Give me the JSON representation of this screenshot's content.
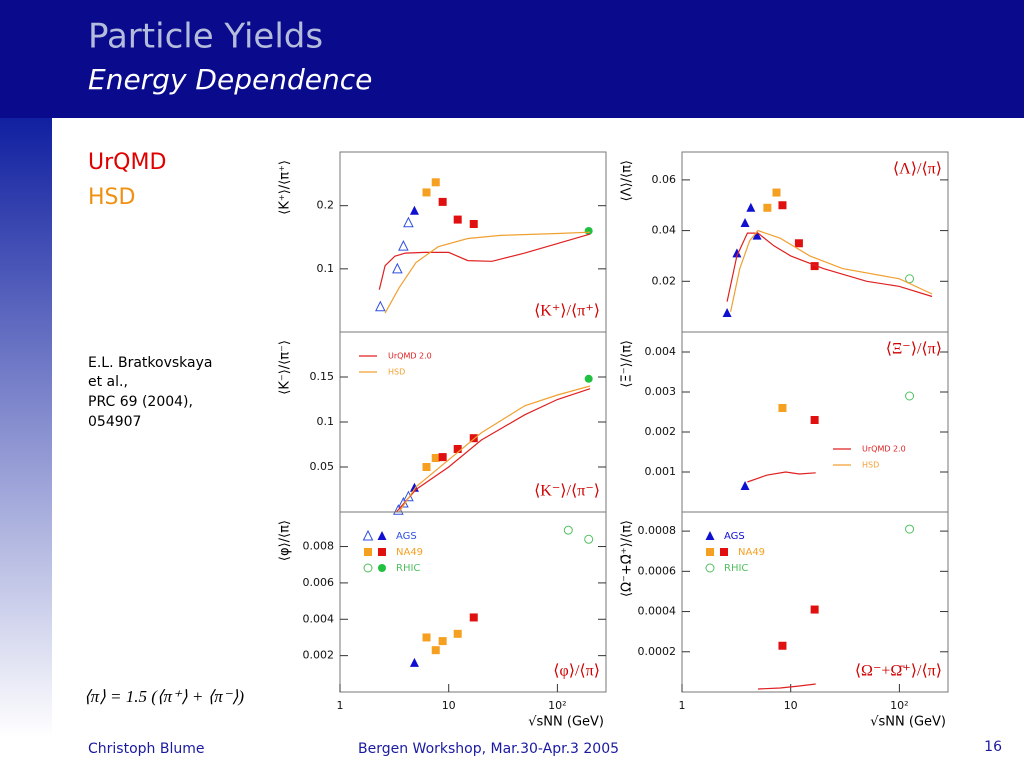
{
  "slide": {
    "title": "Particle Yields",
    "subtitle": "Energy Dependence",
    "model_1": "UrQMD",
    "model_2": "HSD",
    "reference": [
      "E.L. Bratkovskaya",
      "et al.,",
      "PRC 69 (2004),",
      "054907"
    ],
    "formula": "⟨π⟩ = 1.5 (⟨π⁺⟩ + ⟨π⁻⟩)",
    "footer_left": "Christoph Blume",
    "footer_center": "Bergen Workshop, Mar.30-Apr.3 2005",
    "page": "16"
  },
  "chart_data": [
    {
      "type": "scatter",
      "ylabel": "⟨K⁺⟩/⟨π⁺⟩",
      "label": "⟨K⁺⟩/⟨π⁺⟩",
      "label_corner": "lower right",
      "log_x": true,
      "xlim": [
        1,
        280
      ],
      "ylim": [
        0,
        0.285
      ],
      "yticks": [
        0.1,
        0.2
      ],
      "series": [
        {
          "style": "marker",
          "marker": "triangle",
          "open": true,
          "color": "#3050e0",
          "x": [
            2.35,
            3.37,
            3.83,
            4.26
          ],
          "values": [
            0.04,
            0.1,
            0.136,
            0.173
          ]
        },
        {
          "style": "marker",
          "marker": "triangle",
          "open": false,
          "color": "#1010d0",
          "x": [
            4.84
          ],
          "values": [
            0.192
          ]
        },
        {
          "style": "marker",
          "marker": "square",
          "open": false,
          "color": "#f5a020",
          "x": [
            6.25,
            7.6
          ],
          "values": [
            0.221,
            0.237
          ]
        },
        {
          "style": "marker",
          "marker": "square",
          "open": false,
          "color": "#e01010",
          "x": [
            8.8,
            12.1,
            17.0
          ],
          "values": [
            0.206,
            0.178,
            0.171
          ]
        },
        {
          "style": "marker",
          "marker": "circle",
          "open": false,
          "color": "#20c040",
          "x": [
            194
          ],
          "values": [
            0.16
          ]
        },
        {
          "style": "line",
          "color": "#e02020",
          "x": [
            2.3,
            2.6,
            3.2,
            4,
            6,
            10,
            15,
            25,
            50,
            100,
            200
          ],
          "values": [
            0.067,
            0.105,
            0.12,
            0.125,
            0.126,
            0.126,
            0.113,
            0.112,
            0.125,
            0.14,
            0.155
          ]
        },
        {
          "style": "line",
          "color": "#f0a030",
          "x": [
            2.6,
            3.5,
            5,
            8,
            15,
            30,
            100,
            200
          ],
          "values": [
            0.03,
            0.07,
            0.11,
            0.135,
            0.148,
            0.153,
            0.156,
            0.158
          ]
        }
      ]
    },
    {
      "type": "scatter",
      "ylabel": "⟨Λ⟩/⟨π⟩",
      "label": "⟨Λ⟩/⟨π⟩",
      "label_corner": "upper right",
      "log_x": true,
      "xlim": [
        1,
        280
      ],
      "ylim": [
        0,
        0.071
      ],
      "yticks": [
        0.02,
        0.04,
        0.06
      ],
      "series": [
        {
          "style": "marker",
          "marker": "triangle",
          "open": false,
          "color": "#1010d0",
          "x": [
            2.6,
            3.2,
            3.8,
            4.3,
            4.9
          ],
          "values": [
            0.0075,
            0.031,
            0.043,
            0.049,
            0.038
          ]
        },
        {
          "style": "marker",
          "marker": "square",
          "open": false,
          "color": "#f5a020",
          "x": [
            6.1,
            7.4
          ],
          "values": [
            0.049,
            0.055
          ]
        },
        {
          "style": "marker",
          "marker": "square",
          "open": false,
          "color": "#e01010",
          "x": [
            8.4,
            11.9,
            16.6
          ],
          "values": [
            0.05,
            0.035,
            0.026
          ]
        },
        {
          "style": "marker",
          "marker": "circle",
          "open": true,
          "color": "#50c060",
          "x": [
            124
          ],
          "values": [
            0.021
          ]
        },
        {
          "style": "line",
          "color": "#e02020",
          "x": [
            2.6,
            3.2,
            4,
            5,
            7,
            10,
            20,
            50,
            100,
            200
          ],
          "values": [
            0.012,
            0.03,
            0.039,
            0.039,
            0.034,
            0.03,
            0.025,
            0.02,
            0.018,
            0.014
          ]
        },
        {
          "style": "line",
          "color": "#f0a030",
          "x": [
            2.8,
            3.4,
            4.2,
            5,
            8,
            15,
            30,
            100,
            200
          ],
          "values": [
            0.008,
            0.025,
            0.036,
            0.04,
            0.037,
            0.03,
            0.025,
            0.021,
            0.015
          ]
        }
      ]
    },
    {
      "type": "scatter",
      "ylabel": "⟨K⁻⟩/⟨π⁻⟩",
      "label": "⟨K⁻⟩/⟨π⁻⟩",
      "label_corner": "lower right",
      "log_x": true,
      "xlim": [
        1,
        280
      ],
      "ylim": [
        0,
        0.2
      ],
      "yticks": [
        0.05,
        0.1,
        0.15
      ],
      "legend_loc": "upper left",
      "legend": [
        {
          "name": "UrQMD 2.0",
          "markers": [
            {
              "shape": "line",
              "color": "#e02020"
            }
          ]
        },
        {
          "name": "HSD",
          "markers": [
            {
              "shape": "line",
              "color": "#f0a030"
            }
          ]
        }
      ],
      "series": [
        {
          "style": "marker",
          "marker": "triangle",
          "open": true,
          "color": "#3050e0",
          "x": [
            3.44,
            3.83,
            4.26
          ],
          "values": [
            0.002,
            0.01,
            0.017
          ]
        },
        {
          "style": "marker",
          "marker": "triangle",
          "open": false,
          "color": "#1010d0",
          "x": [
            4.84
          ],
          "values": [
            0.027
          ]
        },
        {
          "style": "marker",
          "marker": "square",
          "open": false,
          "color": "#f5a020",
          "x": [
            6.25,
            7.6
          ],
          "values": [
            0.05,
            0.06
          ]
        },
        {
          "style": "marker",
          "marker": "square",
          "open": false,
          "color": "#e01010",
          "x": [
            8.8,
            12.1,
            17.0
          ],
          "values": [
            0.061,
            0.07,
            0.082
          ]
        },
        {
          "style": "marker",
          "marker": "circle",
          "open": false,
          "color": "#20c040",
          "x": [
            194
          ],
          "values": [
            0.148
          ]
        },
        {
          "style": "line",
          "color": "#e02020",
          "x": [
            3.3,
            5,
            10,
            20,
            50,
            100,
            200
          ],
          "values": [
            0.0,
            0.025,
            0.05,
            0.08,
            0.108,
            0.125,
            0.137
          ]
        },
        {
          "style": "line",
          "color": "#f0a030",
          "x": [
            3.5,
            5,
            10,
            20,
            50,
            100,
            200
          ],
          "values": [
            0.0,
            0.028,
            0.058,
            0.088,
            0.118,
            0.13,
            0.14
          ]
        }
      ]
    },
    {
      "type": "scatter",
      "ylabel": "⟨Ξ⁻⟩/⟨π⟩",
      "label": "⟨Ξ⁻⟩/⟨π⟩",
      "label_corner": "upper right",
      "log_x": true,
      "xlim": [
        1,
        280
      ],
      "ylim": [
        0,
        0.0045
      ],
      "yticks": [
        0.001,
        0.002,
        0.003,
        0.004
      ],
      "legend_loc": "lower right",
      "legend": [
        {
          "name": "UrQMD 2.0",
          "markers": [
            {
              "shape": "line",
              "color": "#e02020"
            }
          ]
        },
        {
          "name": "HSD",
          "markers": [
            {
              "shape": "line",
              "color": "#f0a030"
            }
          ]
        }
      ],
      "series": [
        {
          "style": "marker",
          "marker": "triangle",
          "open": false,
          "color": "#1010d0",
          "x": [
            3.8
          ],
          "values": [
            0.00065
          ]
        },
        {
          "style": "marker",
          "marker": "square",
          "open": false,
          "color": "#f5a020",
          "x": [
            8.4
          ],
          "values": [
            0.0026
          ]
        },
        {
          "style": "marker",
          "marker": "square",
          "open": false,
          "color": "#e01010",
          "x": [
            16.6
          ],
          "values": [
            0.0023
          ]
        },
        {
          "style": "marker",
          "marker": "circle",
          "open": true,
          "color": "#50c060",
          "x": [
            124
          ],
          "values": [
            0.0029
          ]
        },
        {
          "style": "line",
          "color": "#e02020",
          "x": [
            4,
            6,
            9,
            12,
            17
          ],
          "values": [
            0.00075,
            0.00092,
            0.001,
            0.00095,
            0.00098
          ]
        }
      ]
    },
    {
      "type": "scatter",
      "ylabel": "⟨φ⟩/⟨π⟩",
      "label": "⟨φ⟩/⟨π⟩",
      "label_corner": "lower right",
      "log_x": true,
      "xlim": [
        1,
        280
      ],
      "ylim": [
        0,
        0.0099
      ],
      "yticks": [
        0.002,
        0.004,
        0.006,
        0.008
      ],
      "xticks": [
        1,
        10,
        {
          "value": 100,
          "label": "10²"
        }
      ],
      "xlabel": "√sNN (GeV)",
      "legend_loc": "upper left",
      "legend": [
        {
          "name": "AGS",
          "markers": [
            {
              "shape": "triangle",
              "open": true,
              "color": "#3050e0"
            },
            {
              "shape": "triangle",
              "open": false,
              "color": "#1010d0"
            }
          ]
        },
        {
          "name": "NA49",
          "markers": [
            {
              "shape": "square",
              "open": false,
              "color": "#f5a020"
            },
            {
              "shape": "square",
              "open": false,
              "color": "#e01010"
            }
          ]
        },
        {
          "name": "RHIC",
          "markers": [
            {
              "shape": "circle",
              "open": true,
              "color": "#50c060"
            },
            {
              "shape": "circle",
              "open": false,
              "color": "#20c040"
            }
          ]
        }
      ],
      "series": [
        {
          "style": "marker",
          "marker": "triangle",
          "open": false,
          "color": "#1010d0",
          "x": [
            4.84
          ],
          "values": [
            0.0016
          ]
        },
        {
          "style": "marker",
          "marker": "square",
          "open": false,
          "color": "#f5a020",
          "x": [
            6.25,
            7.6,
            8.8,
            12.1
          ],
          "values": [
            0.003,
            0.0023,
            0.0028,
            0.0032
          ]
        },
        {
          "style": "marker",
          "marker": "square",
          "open": false,
          "color": "#e01010",
          "x": [
            17.0
          ],
          "values": [
            0.0041
          ]
        },
        {
          "style": "marker",
          "marker": "circle",
          "open": true,
          "color": "#50c060",
          "x": [
            126,
            194
          ],
          "values": [
            0.0089,
            0.0084
          ]
        }
      ]
    },
    {
      "type": "scatter",
      "ylabel": "⟨Ω⁻+Ω̄⁺⟩/⟨π⟩",
      "label": "⟨Ω⁻+Ω̄⁺⟩/⟨π⟩",
      "label_corner": "lower right",
      "log_x": true,
      "xlim": [
        1,
        280
      ],
      "ylim": [
        0,
        0.000895
      ],
      "yticks": [
        0.0002,
        0.0004,
        0.0006,
        0.0008
      ],
      "xticks": [
        1,
        10,
        {
          "value": 100,
          "label": "10²"
        }
      ],
      "xlabel": "√sNN (GeV)",
      "legend_loc": "upper left",
      "legend": [
        {
          "name": "AGS",
          "markers": [
            {
              "shape": "triangle",
              "open": false,
              "color": "#1010d0"
            }
          ]
        },
        {
          "name": "NA49",
          "markers": [
            {
              "shape": "square",
              "open": false,
              "color": "#f5a020"
            },
            {
              "shape": "square",
              "open": false,
              "color": "#e01010"
            }
          ]
        },
        {
          "name": "RHIC",
          "markers": [
            {
              "shape": "circle",
              "open": true,
              "color": "#50c060"
            }
          ]
        }
      ],
      "series": [
        {
          "style": "marker",
          "marker": "square",
          "open": false,
          "color": "#e01010",
          "x": [
            8.4,
            16.6
          ],
          "values": [
            0.00023,
            0.00041
          ]
        },
        {
          "style": "marker",
          "marker": "circle",
          "open": true,
          "color": "#50c060",
          "x": [
            124
          ],
          "values": [
            0.00081
          ]
        },
        {
          "style": "line",
          "color": "#e02020",
          "x": [
            5,
            8,
            12,
            17
          ],
          "values": [
            1.5e-05,
            2e-05,
            3e-05,
            4e-05
          ]
        }
      ]
    }
  ]
}
